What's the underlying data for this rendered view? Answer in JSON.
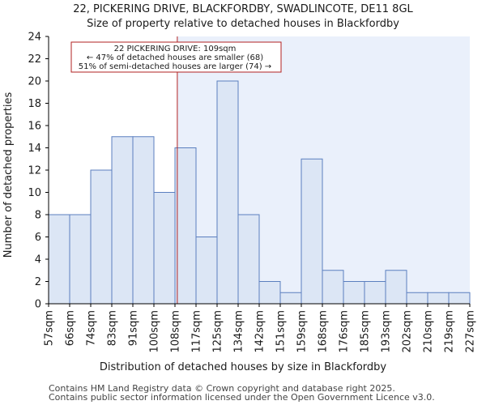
{
  "chart_data": {
    "type": "bar",
    "title": "22, PICKERING DRIVE, BLACKFORDBY, SWADLINCOTE, DE11 8GL",
    "subtitle": "Size of property relative to detached houses in Blackfordby",
    "xlabel": "Distribution of detached houses by size in Blackfordby",
    "ylabel": "Number of detached properties",
    "bin_edges": [
      57,
      66,
      74,
      83,
      91,
      100,
      108,
      117,
      125,
      134,
      142,
      151,
      159,
      168,
      176,
      185,
      193,
      202,
      210,
      219,
      227
    ],
    "tick_labels": [
      "57sqm",
      "66sqm",
      "74sqm",
      "83sqm",
      "91sqm",
      "100sqm",
      "108sqm",
      "117sqm",
      "125sqm",
      "134sqm",
      "142sqm",
      "151sqm",
      "159sqm",
      "168sqm",
      "176sqm",
      "185sqm",
      "193sqm",
      "202sqm",
      "210sqm",
      "219sqm",
      "227sqm"
    ],
    "values": [
      8,
      8,
      12,
      15,
      15,
      10,
      14,
      6,
      20,
      8,
      2,
      1,
      13,
      3,
      2,
      2,
      3,
      1,
      1,
      1
    ],
    "ylim": [
      0,
      24
    ],
    "yticks": [
      0,
      2,
      4,
      6,
      8,
      10,
      12,
      14,
      16,
      18,
      20,
      22,
      24
    ],
    "marker_value": 109,
    "annotation": [
      "22 PICKERING DRIVE: 109sqm",
      "← 47% of detached houses are smaller (68)",
      "51% of semi-detached houses are larger (74) →"
    ],
    "colors": {
      "bar_fill": "#dce6f5",
      "bar_stroke": "#5b7fbf",
      "marker": "#b22222",
      "highlight": "#eaf0fb"
    }
  },
  "footer": {
    "line1": "Contains HM Land Registry data © Crown copyright and database right 2025.",
    "line2": "Contains public sector information licensed under the Open Government Licence v3.0."
  }
}
